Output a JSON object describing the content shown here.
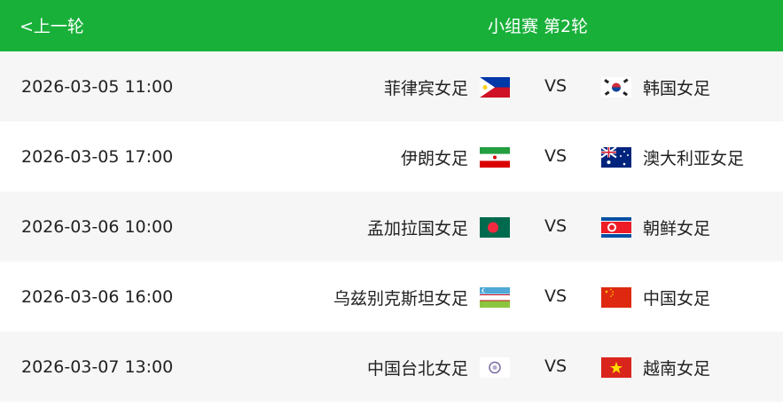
{
  "header": {
    "back_label": "<上一轮",
    "title": "小组赛 第2轮",
    "color": "#19b03a"
  },
  "matches": [
    {
      "time": "2026-03-05 11:00",
      "home": "菲律宾女足",
      "home_flag": "philippines-flag",
      "vs": "VS",
      "away": "韩国女足",
      "away_flag": "south-korea-flag"
    },
    {
      "time": "2026-03-05 17:00",
      "home": "伊朗女足",
      "home_flag": "iran-flag",
      "vs": "VS",
      "away": "澳大利亚女足",
      "away_flag": "australia-flag"
    },
    {
      "time": "2026-03-06 10:00",
      "home": "孟加拉国女足",
      "home_flag": "bangladesh-flag",
      "vs": "VS",
      "away": "朝鲜女足",
      "away_flag": "north-korea-flag"
    },
    {
      "time": "2026-03-06 16:00",
      "home": "乌兹别克斯坦女足",
      "home_flag": "uzbekistan-flag",
      "vs": "VS",
      "away": "中国女足",
      "away_flag": "china-flag"
    },
    {
      "time": "2026-03-07 13:00",
      "home": "中国台北女足",
      "home_flag": "chinese-taipei-flag",
      "vs": "VS",
      "away": "越南女足",
      "away_flag": "vietnam-flag"
    }
  ]
}
